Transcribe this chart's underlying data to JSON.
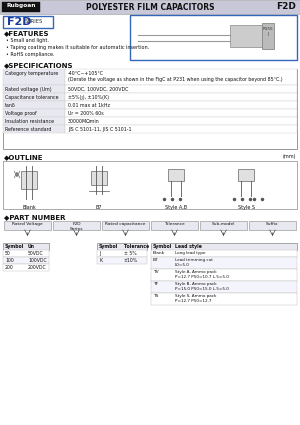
{
  "title_text": "POLYESTER FILM CAPACITORS",
  "title_right": "F2D",
  "brand": "Rubgoan",
  "series_label": "F2D",
  "series_sub": "SERIES",
  "features_title": "FEATURES",
  "features": [
    "Small and light.",
    "Taping coating makes it suitable for automatic insertion.",
    "RoHS compliance."
  ],
  "specs_title": "SPECIFICATIONS",
  "spec_rows": [
    [
      "Category temperature",
      "-40°C~+105°C\n(Derate the voltage as shown in the FigC at P231 when using the capacitor beyond 85°C.)"
    ],
    [
      "Rated voltage (Um)",
      "50VDC, 100VDC, 200VDC"
    ],
    [
      "Capacitance tolerance",
      "±5%(ȷ), ±10%(K)"
    ],
    [
      "tanδ",
      "0.01 max at 1kHz"
    ],
    [
      "Voltage proof",
      "Ur = 200% 60s"
    ],
    [
      "Insulation resistance",
      "30000MΩmin"
    ],
    [
      "Reference standard",
      "JIS C 5101-11, JIS C 5101-1"
    ]
  ],
  "outline_title": "OUTLINE",
  "outline_unit": "(mm)",
  "outline_styles": [
    "Blank",
    "B7",
    "Style A,B",
    "Style S"
  ],
  "part_number_title": "PART NUMBER",
  "part_fields": [
    "Rated Voltage",
    "F2D\nSeries",
    "Rated capacitance",
    "Tolerance",
    "Sub-model",
    "Suffix"
  ],
  "voltage_table": {
    "headers": [
      "Symbol",
      "Un"
    ],
    "rows": [
      [
        "50",
        "50VDC"
      ],
      [
        "100",
        "100VDC"
      ],
      [
        "200",
        "200VDC"
      ]
    ]
  },
  "tolerance_table": {
    "headers": [
      "Symbol",
      "Tolerance"
    ],
    "rows": [
      [
        "J",
        "± 5%"
      ],
      [
        "K",
        "±10%"
      ]
    ]
  },
  "lead_style_table": {
    "headers": [
      "Symbol",
      "Lead style"
    ],
    "rows": [
      [
        "Blank",
        "Long lead type"
      ],
      [
        "B7",
        "Lead trimming cut\nL0=5.0"
      ],
      [
        "TV",
        "Style A, Ammo pack\nP=12.7 P50=10.7 L.5=5.0"
      ],
      [
        "TF",
        "Style B, Ammo pack\nP=15.0 P50=15.0 L.5=5.0"
      ],
      [
        "TS",
        "Style S, Ammo pack\nP=12.7 P50=12.7"
      ]
    ]
  },
  "bg_header": "#c8c8d8",
  "bg_white": "#ffffff",
  "bg_light": "#e8e8f0",
  "border_color": "#888888",
  "text_dark": "#111111",
  "text_blue": "#1a3a9c",
  "blue_border": "#3366bb"
}
